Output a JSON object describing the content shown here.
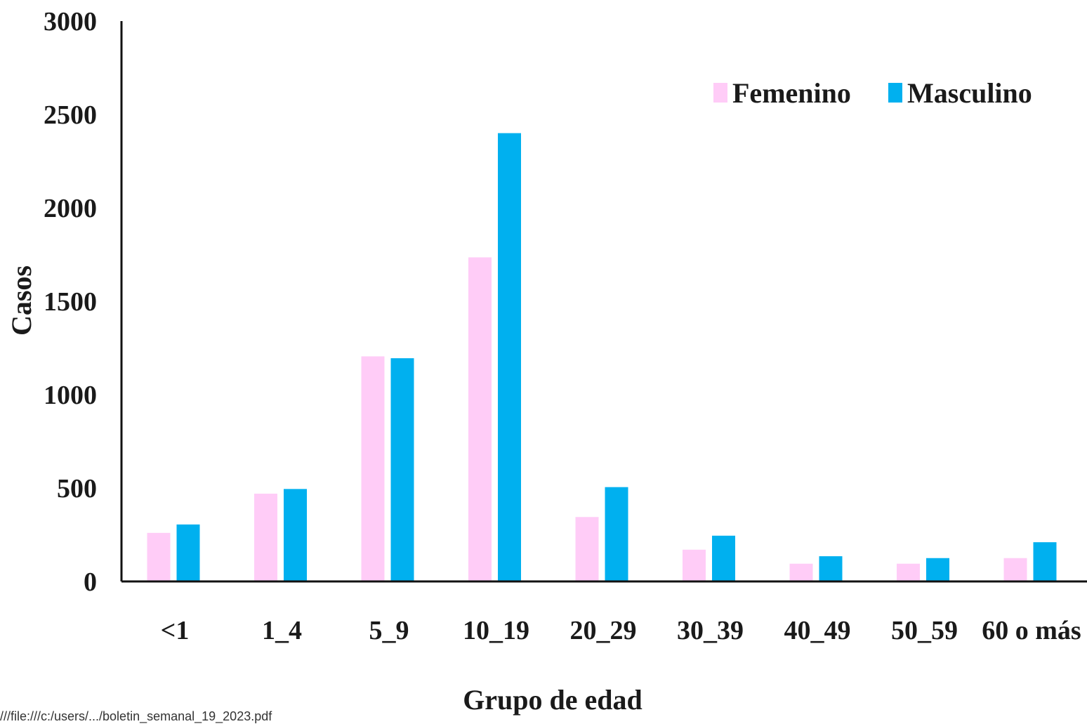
{
  "chart_data": {
    "type": "bar",
    "title": "",
    "xlabel": "Grupo de edad",
    "ylabel": "Casos",
    "ylim": [
      0,
      3000
    ],
    "yticks": [
      0,
      500,
      1000,
      1500,
      2000,
      2500,
      3000
    ],
    "ytick_labels": [
      "0",
      "500",
      "1000",
      "1500",
      "2000",
      "2500",
      "3000"
    ],
    "categories": [
      "<1",
      "1_4",
      "5_9",
      "10_19",
      "20_29",
      "30_39",
      "40_49",
      "50_59",
      "60 o más"
    ],
    "series": [
      {
        "name": "Femenino",
        "color": "#ffccf7",
        "values": [
          260,
          470,
          1205,
          1735,
          345,
          170,
          95,
          95,
          125
        ]
      },
      {
        "name": "Masculino",
        "color": "#00b0ef",
        "values": [
          305,
          495,
          1195,
          2400,
          505,
          245,
          135,
          125,
          210
        ]
      }
    ],
    "legend_position": "top-right",
    "grid": false
  },
  "footer": {
    "text": "///file:///c:/users/.../boletin_semanal_19_2023.pdf"
  }
}
